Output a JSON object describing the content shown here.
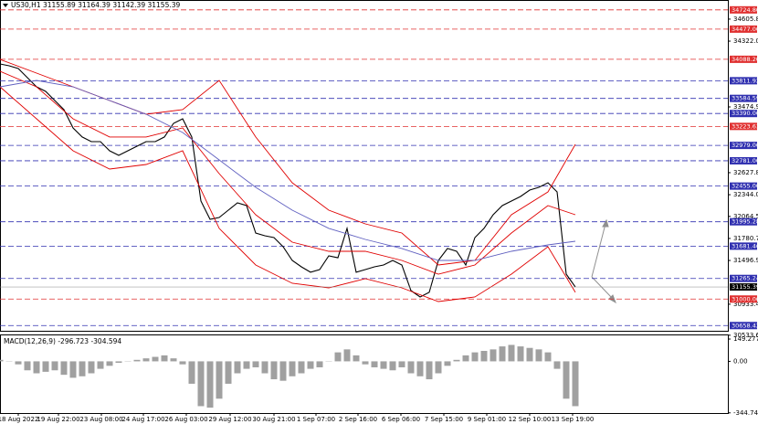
{
  "chart_data": [
    {
      "type": "line",
      "title": "US30,H1  31155.89 31164.39 31142.39 31155.39",
      "xlim": [
        0,
        79.7
      ],
      "ylim": [
        30591,
        34852
      ],
      "xticks": [
        {
          "value": 2.0,
          "label": "18 Aug 2022"
        },
        {
          "value": 6.4,
          "label": "19 Aug 22:00"
        },
        {
          "value": 11.1,
          "label": "23 Aug 08:00"
        },
        {
          "value": 15.7,
          "label": "24 Aug 17:00"
        },
        {
          "value": 20.4,
          "label": "26 Aug 03:00"
        },
        {
          "value": 25.2,
          "label": "29 Aug 12:00"
        },
        {
          "value": 30.0,
          "label": "30 Aug 21:00"
        },
        {
          "value": 34.6,
          "label": "1 Sep 07:00"
        },
        {
          "value": 39.2,
          "label": "2 Sep 16:00"
        },
        {
          "value": 43.9,
          "label": "6 Sep 06:00"
        },
        {
          "value": 48.6,
          "label": "7 Sep 15:00"
        },
        {
          "value": 53.3,
          "label": "9 Sep 01:00"
        },
        {
          "value": 58.0,
          "label": "12 Sep 10:00"
        },
        {
          "value": 62.7,
          "label": "13 Sep 19:00"
        }
      ],
      "yticks": [
        {
          "value": 34605.8,
          "label": "34605.80"
        },
        {
          "value": 34322,
          "label": "34322.00"
        },
        {
          "value": 33474.9,
          "label": "33474.90"
        },
        {
          "value": 32627.8,
          "label": "32627.80"
        },
        {
          "value": 32344,
          "label": "32344.00"
        },
        {
          "value": 32064.5,
          "label": "32064.50"
        },
        {
          "value": 31780.7,
          "label": "31780.70"
        },
        {
          "value": 31496.9,
          "label": "31496.90"
        },
        {
          "value": 30933.4,
          "label": "30933.40"
        },
        {
          "value": 30533.6,
          "label": "30533.60"
        }
      ],
      "levels": [
        {
          "value": 34724.8,
          "label": "34724.80",
          "color": "#e03030"
        },
        {
          "value": 34477,
          "label": "34477.00",
          "color": "#e03030"
        },
        {
          "value": 34088.2,
          "label": "34088.20",
          "color": "#e03030"
        },
        {
          "value": 33811.92,
          "label": "33811.92",
          "color": "#3030b0"
        },
        {
          "value": 33584.59,
          "label": "33584.59",
          "color": "#3030b0"
        },
        {
          "value": 33390,
          "label": "33390.00",
          "color": "#3030b0"
        },
        {
          "value": 33223.63,
          "label": "33223.63",
          "color": "#e03030"
        },
        {
          "value": 32979,
          "label": "32979.00",
          "color": "#3030b0"
        },
        {
          "value": 32781,
          "label": "32781.00",
          "color": "#3030b0"
        },
        {
          "value": 32455,
          "label": "32455.00",
          "color": "#3030b0"
        },
        {
          "value": 31995.28,
          "label": "31995.28",
          "color": "#3030b0"
        },
        {
          "value": 31681.46,
          "label": "31681.46",
          "color": "#3030b0"
        },
        {
          "value": 31265.24,
          "label": "31265.24",
          "color": "#3030b0"
        },
        {
          "value": 31000,
          "label": "31000.00",
          "color": "#e03030"
        },
        {
          "value": 30658.42,
          "label": "30658.42",
          "color": "#3030b0"
        }
      ],
      "current": {
        "value": 31155.39,
        "label": "31155.39",
        "color": "#000000"
      },
      "series": [
        {
          "color": "#000000",
          "x": [
            0,
            1,
            2,
            3,
            4,
            5,
            6,
            7,
            8,
            9,
            10,
            11,
            12,
            13,
            14,
            15,
            16,
            17,
            18,
            19,
            20,
            21,
            22,
            23,
            24,
            25,
            26,
            27,
            28,
            29,
            30,
            31,
            32,
            33,
            34,
            35,
            36,
            37,
            38,
            39,
            40,
            41,
            42,
            43,
            44,
            45,
            46,
            47,
            48,
            49,
            50,
            51,
            52,
            53,
            54,
            55,
            56,
            57,
            58,
            59,
            60,
            61,
            62,
            63
          ],
          "values": [
            34028,
            34005,
            33969,
            33852,
            33734,
            33675,
            33557,
            33440,
            33204,
            33087,
            33028,
            33028,
            32910,
            32851,
            32910,
            32969,
            33028,
            33028,
            33087,
            33263,
            33322,
            33087,
            32263,
            32027,
            32051,
            32145,
            32239,
            32204,
            31851,
            31815,
            31792,
            31674,
            31497,
            31415,
            31345,
            31380,
            31556,
            31532,
            31910,
            31345,
            31380,
            31415,
            31439,
            31497,
            31439,
            31109,
            31027,
            31086,
            31497,
            31651,
            31615,
            31439,
            31792,
            31910,
            32086,
            32204,
            32263,
            32321,
            32404,
            32439,
            32498,
            32380,
            31321,
            31155
          ]
        },
        {
          "color": "#e00000",
          "x": [
            0,
            4,
            8,
            12,
            16,
            20,
            24,
            28,
            32,
            36,
            40,
            44,
            48,
            52,
            56,
            60,
            63
          ],
          "values": [
            34087,
            33910,
            33734,
            33557,
            33381,
            33440,
            33816,
            33087,
            32498,
            32145,
            31968,
            31851,
            31439,
            31497,
            32086,
            32380,
            32992
          ]
        },
        {
          "color": "#e00000",
          "x": [
            0,
            4,
            8,
            12,
            16,
            20,
            24,
            28,
            32,
            36,
            40,
            44,
            48,
            52,
            56,
            60,
            63
          ],
          "values": [
            33934,
            33734,
            33322,
            33087,
            33087,
            33204,
            32616,
            32086,
            31733,
            31615,
            31615,
            31497,
            31321,
            31439,
            31851,
            32204,
            32086
          ]
        },
        {
          "color": "#e00000",
          "x": [
            0,
            4,
            8,
            12,
            16,
            20,
            24,
            28,
            32,
            36,
            40,
            44,
            48,
            52,
            56,
            60,
            63
          ],
          "values": [
            33734,
            33322,
            32910,
            32675,
            32733,
            32910,
            31910,
            31439,
            31203,
            31144,
            31262,
            31144,
            30968,
            31027,
            31321,
            31674,
            31086
          ]
        },
        {
          "color": "#6060c0",
          "x": [
            0,
            4,
            8,
            12,
            16,
            20,
            24,
            28,
            32,
            36,
            40,
            44,
            48,
            52,
            56,
            60,
            63
          ],
          "values": [
            33734,
            33816,
            33734,
            33557,
            33381,
            33145,
            32792,
            32439,
            32145,
            31910,
            31768,
            31651,
            31497,
            31497,
            31615,
            31698,
            31745
          ]
        }
      ]
    },
    {
      "type": "bar",
      "title": "MACD(12,26,9) -296.723 -304.594",
      "color": "#a0a0a0",
      "xlim": [
        0,
        79.7
      ],
      "ylim": [
        -346,
        180
      ],
      "yticks": [
        {
          "value": 149.277,
          "label": "149.277"
        },
        {
          "value": 0,
          "label": "0.00"
        },
        {
          "value": -344.74,
          "label": "-344.74"
        }
      ],
      "x": [
        0,
        1,
        2,
        3,
        4,
        5,
        6,
        7,
        8,
        9,
        10,
        11,
        12,
        13,
        14,
        15,
        16,
        17,
        18,
        19,
        20,
        21,
        22,
        23,
        24,
        25,
        26,
        27,
        28,
        29,
        30,
        31,
        32,
        33,
        34,
        35,
        36,
        37,
        38,
        39,
        40,
        41,
        42,
        43,
        44,
        45,
        46,
        47,
        48,
        49,
        50,
        51,
        52,
        53,
        54,
        55,
        56,
        57,
        58,
        59,
        60,
        61,
        62,
        63
      ],
      "values": [
        10,
        0,
        -20,
        -60,
        -80,
        -70,
        -60,
        -90,
        -110,
        -100,
        -80,
        -50,
        -30,
        -10,
        0,
        10,
        20,
        30,
        40,
        20,
        -20,
        -150,
        -300,
        -310,
        -250,
        -150,
        -80,
        -50,
        -40,
        -80,
        -120,
        -130,
        -100,
        -80,
        -50,
        -40,
        0,
        60,
        80,
        40,
        -20,
        -40,
        -50,
        -60,
        -40,
        -80,
        -100,
        -120,
        -80,
        -30,
        10,
        40,
        60,
        70,
        80,
        100,
        110,
        100,
        90,
        80,
        60,
        -50,
        -250,
        -300
      ]
    }
  ]
}
